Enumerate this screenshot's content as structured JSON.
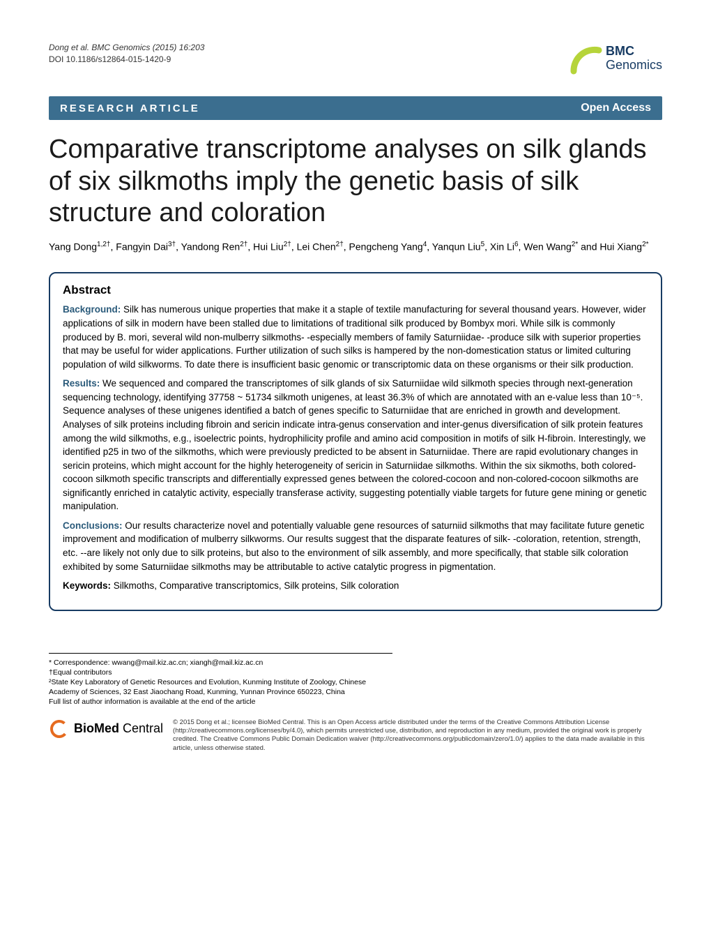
{
  "citation": {
    "line1": "Dong et al. BMC Genomics  (2015) 16:203",
    "line2": "DOI 10.1186/s12864-015-1420-9"
  },
  "logo": {
    "bmc": "BMC",
    "journal": "Genomics",
    "arc_color": "#b6d43a",
    "text_color": "#173b63"
  },
  "article_bar": {
    "left": "RESEARCH ARTICLE",
    "right": "Open Access",
    "bg_color": "#3b6e8f",
    "text_color": "#ffffff"
  },
  "title": "Comparative transcriptome analyses on silk glands of six silkmoths imply the genetic basis of silk structure and coloration",
  "authors_html": "Yang Dong<sup>1,2†</sup>, Fangyin Dai<sup>3†</sup>, Yandong Ren<sup>2†</sup>, Hui Liu<sup>2†</sup>, Lei Chen<sup>2†</sup>, Pengcheng Yang<sup>4</sup>, Yanqun Liu<sup>5</sup>, Xin Li<sup>6</sup>, Wen Wang<sup>2*</sup> and Hui Xiang<sup>2*</sup>",
  "abstract": {
    "heading": "Abstract",
    "background_label": "Background:",
    "background_text": " Silk has numerous unique properties that make it a staple of textile manufacturing for several thousand years. However, wider applications of silk in modern have been stalled due to limitations of traditional silk produced by Bombyx mori. While silk is commonly produced by B. mori, several wild non-mulberry silkmoths- -especially members of family Saturniidae- -produce silk with superior properties that may be useful for wider applications. Further utilization of such silks is hampered by the non-domestication status or limited culturing population of wild silkworms. To date there is insufficient basic genomic or transcriptomic data on these organisms or their silk production.",
    "results_label": "Results:",
    "results_text": " We sequenced and compared the transcriptomes of silk glands of six Saturniidae wild silkmoth species through next-generation sequencing technology,  identifying 37758 ~ 51734 silkmoth unigenes, at least 36.3% of which are annotated with an e-value less than 10⁻⁵. Sequence analyses of these unigenes identified a batch of genes specific to Saturniidae that are enriched in growth and development. Analyses of silk proteins including fibroin and sericin indicate intra-genus conservation and inter-genus diversification of silk protein features among the wild silkmoths, e.g., isoelectric points, hydrophilicity profile and amino acid composition in motifs of silk H-fibroin. Interestingly, we identified p25 in two of the silkmoths, which were previously predicted to be absent in Saturniidae. There are rapid evolutionary changes in sericin proteins, which might account for the highly heterogeneity of sericin in Saturniidae silkmoths. Within the six sikmoths, both colored-cocoon silkmoth specific transcripts and differentially expressed genes between the colored-cocoon and non-colored-cocoon silkmoths are significantly enriched in catalytic activity, especially transferase activity, suggesting potentially viable targets for future gene mining or genetic manipulation.",
    "conclusions_label": "Conclusions:",
    "conclusions_text": " Our results characterize novel and potentially valuable gene resources of saturniid silkmoths that may facilitate future genetic improvement and modification of mulberry silkworms. Our results suggest that the disparate features of silk- -coloration, retention, strength, etc. --are likely not only due to silk proteins, but also to the environment of silk assembly, and more specifically, that stable silk coloration exhibited by some Saturniidae silkmoths may be attributable to active catalytic progress in pigmentation.",
    "keywords_label": "Keywords:",
    "keywords_text": " Silkmoths, Comparative transcriptomics, Silk proteins, Silk coloration",
    "border_color": "#173b63",
    "label_color": "#2a5a7a"
  },
  "footer": {
    "correspondence": "* Correspondence: wwang@mail.kiz.ac.cn; xiangh@mail.kiz.ac.cn",
    "equal": "†Equal contributors",
    "affiliation": "²State Key Laboratory of Genetic Resources and Evolution, Kunming Institute of Zoology, Chinese Academy of Sciences, 32 East Jiaochang Road, Kunming, Yunnan Province 650223, China",
    "full_list": "Full list of author information is available at the end of the article"
  },
  "license": {
    "logo_color": "#e66b1f",
    "logo_bold": "BioMed",
    "logo_rest": " Central",
    "text": "© 2015 Dong et al.; licensee BioMed Central. This is an Open Access article distributed under the terms of the Creative Commons Attribution License (http://creativecommons.org/licenses/by/4.0), which permits unrestricted use, distribution, and reproduction in any medium, provided the original work is properly credited. The Creative Commons Public Domain Dedication waiver (http://creativecommons.org/publicdomain/zero/1.0/) applies to the data made available in this article, unless otherwise stated."
  }
}
